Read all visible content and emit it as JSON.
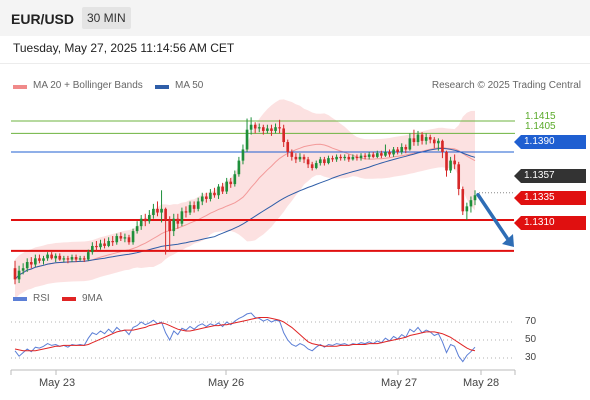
{
  "header": {
    "symbol": "EUR/USD",
    "timeframe": "30 MIN"
  },
  "timestamp": "Tuesday, May 27, 2025 11:14:56 AM CET",
  "legend": {
    "bollinger": {
      "label": "MA 20 + Bollinger Bands",
      "color": "#f08a8a"
    },
    "ma50": {
      "label": "MA 50",
      "color": "#2f5ea8"
    },
    "credit": "Research © 2025 Trading Central",
    "rsi": {
      "label": "RSI",
      "color": "#5c7fd6"
    },
    "ma9": {
      "label": "9MA",
      "color": "#e02424"
    }
  },
  "colors": {
    "bull": "#1e8f3a",
    "bear": "#d62828",
    "band_fill": "#fbdcdc",
    "ma50_line": "#2f5ea8",
    "ma20_line": "#f39a9a"
  },
  "chart_data": {
    "type": "candlestick",
    "y_range": [
      1.128,
      1.1432
    ],
    "x_labels": [
      "May 23",
      "May 26",
      "May 27",
      "May 28"
    ],
    "price_levels": [
      {
        "value": "1.1415",
        "type": "target",
        "color": "#6db33f"
      },
      {
        "value": "1.1405",
        "type": "target",
        "color": "#6db33f"
      },
      {
        "value": "1.1390",
        "type": "resistance",
        "color": "#1f5fd1"
      },
      {
        "value": "1.1357",
        "type": "last",
        "color": "#333333"
      },
      {
        "value": "1.1335",
        "type": "support",
        "color": "#e01010"
      },
      {
        "value": "1.1310",
        "type": "support",
        "color": "#e01010"
      }
    ],
    "forecast_arrow": {
      "from": 1.1357,
      "to": 1.1314,
      "direction": "down"
    },
    "candles": [
      [
        1.1296,
        1.1287,
        1.1302,
        1.1283
      ],
      [
        1.1287,
        1.1294,
        1.1298,
        1.1284
      ],
      [
        1.1294,
        1.1296,
        1.13,
        1.1291
      ],
      [
        1.1296,
        1.1301,
        1.1304,
        1.1293
      ],
      [
        1.1301,
        1.1299,
        1.1305,
        1.1296
      ],
      [
        1.1299,
        1.1304,
        1.1307,
        1.1297
      ],
      [
        1.1304,
        1.1302,
        1.1307,
        1.13
      ],
      [
        1.1302,
        1.1304,
        1.1306,
        1.1299
      ],
      [
        1.1304,
        1.1307,
        1.1309,
        1.1302
      ],
      [
        1.1307,
        1.1304,
        1.1309,
        1.1303
      ],
      [
        1.1304,
        1.1306,
        1.1308,
        1.1301
      ],
      [
        1.1306,
        1.1303,
        1.1308,
        1.1302
      ],
      [
        1.1303,
        1.1304,
        1.1306,
        1.1301
      ],
      [
        1.1304,
        1.1303,
        1.1306,
        1.13
      ],
      [
        1.1303,
        1.1305,
        1.1307,
        1.1301
      ],
      [
        1.1305,
        1.1303,
        1.1307,
        1.1301
      ],
      [
        1.1303,
        1.1304,
        1.1306,
        1.1302
      ],
      [
        1.1304,
        1.1303,
        1.1306,
        1.1301
      ],
      [
        1.1303,
        1.1309,
        1.1311,
        1.1302
      ],
      [
        1.1309,
        1.1314,
        1.1317,
        1.1307
      ],
      [
        1.1314,
        1.1313,
        1.1318,
        1.131
      ],
      [
        1.1313,
        1.1316,
        1.1319,
        1.1311
      ],
      [
        1.1316,
        1.1314,
        1.132,
        1.1312
      ],
      [
        1.1314,
        1.1318,
        1.1321,
        1.1313
      ],
      [
        1.1318,
        1.1317,
        1.1322,
        1.1314
      ],
      [
        1.1317,
        1.1322,
        1.1324,
        1.1315
      ],
      [
        1.1322,
        1.132,
        1.1325,
        1.1318
      ],
      [
        1.132,
        1.1321,
        1.1324,
        1.1317
      ],
      [
        1.1321,
        1.1317,
        1.1323,
        1.1315
      ],
      [
        1.1317,
        1.1326,
        1.1328,
        1.1315
      ],
      [
        1.1326,
        1.133,
        1.1334,
        1.1324
      ],
      [
        1.133,
        1.1336,
        1.1339,
        1.1327
      ],
      [
        1.1336,
        1.1334,
        1.134,
        1.133
      ],
      [
        1.1334,
        1.1339,
        1.1343,
        1.1332
      ],
      [
        1.1339,
        1.1344,
        1.1348,
        1.1336
      ],
      [
        1.1344,
        1.1341,
        1.135,
        1.1338
      ],
      [
        1.1341,
        1.1344,
        1.1359,
        1.1333
      ],
      [
        1.1344,
        1.1335,
        1.1345,
        1.1307
      ],
      [
        1.1335,
        1.1326,
        1.1338,
        1.131
      ],
      [
        1.1326,
        1.1336,
        1.134,
        1.1322
      ],
      [
        1.1336,
        1.1332,
        1.134,
        1.1328
      ],
      [
        1.1332,
        1.1342,
        1.1345,
        1.133
      ],
      [
        1.1342,
        1.1341,
        1.1346,
        1.1337
      ],
      [
        1.1341,
        1.1347,
        1.135,
        1.1339
      ],
      [
        1.1347,
        1.1344,
        1.135,
        1.1341
      ],
      [
        1.1344,
        1.135,
        1.1353,
        1.1342
      ],
      [
        1.135,
        1.1354,
        1.1357,
        1.1347
      ],
      [
        1.1354,
        1.1352,
        1.1357,
        1.1349
      ],
      [
        1.1352,
        1.1357,
        1.136,
        1.135
      ],
      [
        1.1357,
        1.1355,
        1.1361,
        1.1353
      ],
      [
        1.1355,
        1.1362,
        1.1364,
        1.1352
      ],
      [
        1.1362,
        1.1358,
        1.1365,
        1.1356
      ],
      [
        1.1358,
        1.1366,
        1.1369,
        1.1356
      ],
      [
        1.1366,
        1.1364,
        1.1369,
        1.1361
      ],
      [
        1.1364,
        1.1372,
        1.1375,
        1.1362
      ],
      [
        1.1372,
        1.1383,
        1.1386,
        1.137
      ],
      [
        1.1383,
        1.1392,
        1.1396,
        1.138
      ],
      [
        1.1392,
        1.1408,
        1.1417,
        1.139
      ],
      [
        1.1408,
        1.1412,
        1.1418,
        1.1404
      ],
      [
        1.1412,
        1.1409,
        1.1414,
        1.1405
      ],
      [
        1.1409,
        1.141,
        1.1413,
        1.1406
      ],
      [
        1.141,
        1.1407,
        1.1412,
        1.1404
      ],
      [
        1.1407,
        1.1409,
        1.1412,
        1.1405
      ],
      [
        1.1409,
        1.1407,
        1.1412,
        1.1403
      ],
      [
        1.1407,
        1.141,
        1.1413,
        1.1405
      ],
      [
        1.141,
        1.1409,
        1.1416,
        1.1405
      ],
      [
        1.1409,
        1.1398,
        1.1412,
        1.1394
      ],
      [
        1.1398,
        1.139,
        1.14,
        1.1386
      ],
      [
        1.139,
        1.1386,
        1.1392,
        1.1383
      ],
      [
        1.1386,
        1.1384,
        1.1389,
        1.1381
      ],
      [
        1.1384,
        1.1386,
        1.1389,
        1.1382
      ],
      [
        1.1386,
        1.1384,
        1.1388,
        1.1381
      ],
      [
        1.1384,
        1.138,
        1.1386,
        1.1377
      ],
      [
        1.138,
        1.1377,
        1.1382,
        1.1375
      ],
      [
        1.1377,
        1.1381,
        1.1383,
        1.1376
      ],
      [
        1.1381,
        1.1384,
        1.1386,
        1.1379
      ],
      [
        1.1384,
        1.1381,
        1.1386,
        1.1379
      ],
      [
        1.1381,
        1.1385,
        1.1387,
        1.138
      ],
      [
        1.1385,
        1.1384,
        1.1387,
        1.1382
      ],
      [
        1.1384,
        1.1386,
        1.1388,
        1.1382
      ],
      [
        1.1386,
        1.1385,
        1.1388,
        1.1383
      ],
      [
        1.1385,
        1.1386,
        1.1388,
        1.1383
      ],
      [
        1.1386,
        1.1384,
        1.1388,
        1.1382
      ],
      [
        1.1384,
        1.1386,
        1.1388,
        1.1383
      ],
      [
        1.1386,
        1.1385,
        1.1388,
        1.1383
      ],
      [
        1.1385,
        1.1387,
        1.1389,
        1.1383
      ],
      [
        1.1387,
        1.1386,
        1.1389,
        1.1384
      ],
      [
        1.1386,
        1.1388,
        1.139,
        1.1384
      ],
      [
        1.1388,
        1.1386,
        1.139,
        1.1385
      ],
      [
        1.1386,
        1.1389,
        1.1391,
        1.1385
      ],
      [
        1.1389,
        1.1387,
        1.1391,
        1.1385
      ],
      [
        1.1387,
        1.139,
        1.1396,
        1.1386
      ],
      [
        1.139,
        1.1388,
        1.1392,
        1.1386
      ],
      [
        1.1388,
        1.1392,
        1.1394,
        1.1386
      ],
      [
        1.1392,
        1.139,
        1.1394,
        1.1388
      ],
      [
        1.139,
        1.1394,
        1.1397,
        1.1388
      ],
      [
        1.1394,
        1.1392,
        1.1396,
        1.1389
      ],
      [
        1.1392,
        1.1401,
        1.1405,
        1.1391
      ],
      [
        1.1401,
        1.1398,
        1.1408,
        1.1395
      ],
      [
        1.1398,
        1.1404,
        1.1407,
        1.1395
      ],
      [
        1.1404,
        1.1399,
        1.1406,
        1.1396
      ],
      [
        1.1399,
        1.1402,
        1.1405,
        1.1396
      ],
      [
        1.1402,
        1.14,
        1.1404,
        1.1397
      ],
      [
        1.14,
        1.1397,
        1.1402,
        1.1393
      ],
      [
        1.1397,
        1.1399,
        1.1401,
        1.1391
      ],
      [
        1.1399,
        1.139,
        1.14,
        1.1385
      ],
      [
        1.139,
        1.1375,
        1.1391,
        1.137
      ],
      [
        1.1375,
        1.1383,
        1.1386,
        1.1373
      ],
      [
        1.1383,
        1.138,
        1.1388,
        1.1376
      ],
      [
        1.138,
        1.136,
        1.1382,
        1.1355
      ],
      [
        1.136,
        1.1342,
        1.1362,
        1.1339
      ],
      [
        1.1342,
        1.1346,
        1.1349,
        1.1335
      ],
      [
        1.1346,
        1.1351,
        1.1354,
        1.1341
      ],
      [
        1.1351,
        1.1355,
        1.1359,
        1.1347
      ]
    ],
    "rsi": {
      "y_range": [
        20,
        80
      ],
      "levels": [
        "70",
        "50",
        "30"
      ],
      "rsi_values": [
        38,
        32,
        36,
        40,
        37,
        42,
        41,
        43,
        46,
        44,
        45,
        43,
        44,
        42,
        45,
        44,
        45,
        44,
        52,
        58,
        56,
        60,
        57,
        62,
        58,
        64,
        60,
        61,
        56,
        64,
        66,
        70,
        67,
        69,
        72,
        68,
        70,
        58,
        50,
        60,
        56,
        63,
        61,
        65,
        62,
        66,
        68,
        65,
        68,
        66,
        69,
        65,
        70,
        67,
        71,
        74,
        76,
        79,
        80,
        75,
        74,
        71,
        73,
        70,
        72,
        71,
        58,
        50,
        45,
        43,
        46,
        44,
        40,
        38,
        42,
        45,
        42,
        45,
        44,
        46,
        45,
        46,
        44,
        46,
        45,
        47,
        46,
        48,
        46,
        49,
        47,
        52,
        49,
        54,
        51,
        56,
        53,
        62,
        59,
        64,
        58,
        61,
        59,
        55,
        57,
        48,
        36,
        45,
        43,
        32,
        26,
        33,
        37,
        42
      ],
      "ma9_values": [
        40,
        39,
        38,
        38,
        38,
        38,
        39,
        40,
        41,
        42,
        43,
        43,
        44,
        44,
        44,
        44,
        44,
        44,
        45,
        47,
        49,
        51,
        53,
        55,
        57,
        59,
        60,
        61,
        61,
        61,
        62,
        63,
        64,
        66,
        67,
        68,
        69,
        68,
        66,
        64,
        62,
        61,
        60,
        60,
        61,
        62,
        63,
        64,
        65,
        66,
        66,
        67,
        67,
        68,
        69,
        70,
        71,
        72,
        73,
        74,
        75,
        75,
        75,
        74,
        73,
        72,
        70,
        67,
        64,
        60,
        56,
        52,
        48,
        46,
        45,
        44,
        43,
        43,
        43,
        43,
        44,
        44,
        44,
        45,
        45,
        45,
        45,
        46,
        46,
        46,
        47,
        48,
        49,
        50,
        51,
        52,
        53,
        55,
        56,
        57,
        58,
        59,
        59,
        59,
        58,
        57,
        55,
        53,
        50,
        47,
        44,
        41,
        39,
        38
      ]
    }
  }
}
